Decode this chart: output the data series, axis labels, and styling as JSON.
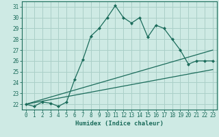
{
  "xlabel": "Humidex (Indice chaleur)",
  "background_color": "#ceeae4",
  "grid_color": "#aacfc8",
  "line_color": "#1a6b5a",
  "xlim": [
    -0.5,
    23.5
  ],
  "ylim": [
    21.5,
    31.5
  ],
  "xticks": [
    0,
    1,
    2,
    3,
    4,
    5,
    6,
    7,
    8,
    9,
    10,
    11,
    12,
    13,
    14,
    15,
    16,
    17,
    18,
    19,
    20,
    21,
    22,
    23
  ],
  "yticks": [
    22,
    23,
    24,
    25,
    26,
    27,
    28,
    29,
    30,
    31
  ],
  "main_x": [
    0,
    1,
    2,
    3,
    4,
    5,
    6,
    7,
    8,
    9,
    10,
    11,
    12,
    13,
    14,
    15,
    16,
    17,
    18,
    19,
    20,
    21,
    22,
    23
  ],
  "main_y": [
    22.0,
    21.8,
    22.2,
    22.1,
    21.8,
    22.2,
    24.3,
    26.1,
    28.3,
    29.0,
    30.0,
    31.1,
    30.0,
    29.5,
    30.0,
    28.2,
    29.3,
    29.0,
    28.0,
    27.0,
    25.7,
    26.0,
    26.0,
    26.0
  ],
  "line2_x": [
    0,
    23
  ],
  "line2_y": [
    22.0,
    27.0
  ],
  "line3_x": [
    0,
    23
  ],
  "line3_y": [
    22.0,
    25.2
  ],
  "xlabel_fontsize": 6.5,
  "tick_fontsize": 5.5
}
